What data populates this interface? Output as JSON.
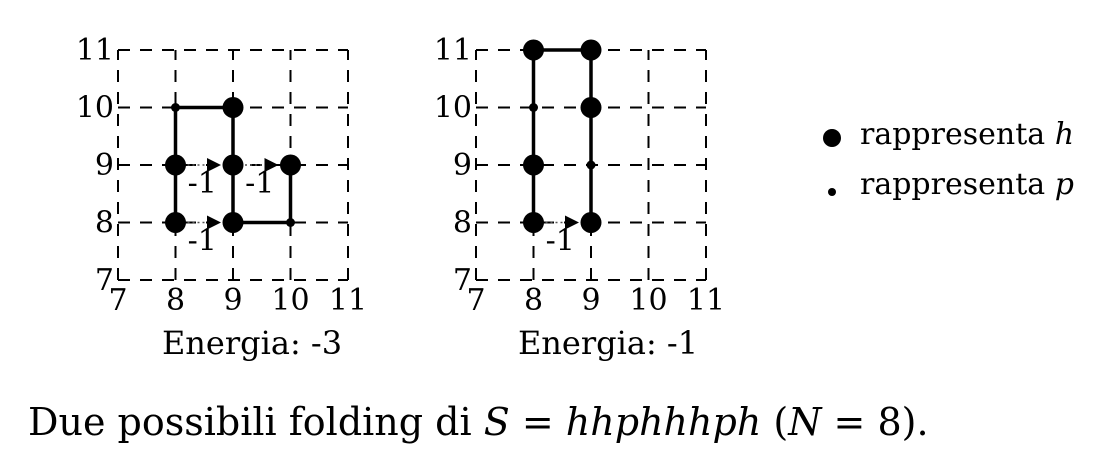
{
  "axis_ticks": {
    "x": [
      "7",
      "8",
      "9",
      "10",
      "11"
    ],
    "y": [
      "7",
      "8",
      "9",
      "10",
      "11"
    ]
  },
  "folding_1": {
    "energy_label": "Energia: -3",
    "path": [
      [
        8,
        8
      ],
      [
        8,
        9
      ],
      [
        8,
        10
      ],
      [
        9,
        10
      ],
      [
        9,
        9
      ],
      [
        9,
        8
      ],
      [
        10,
        8
      ],
      [
        10,
        9
      ]
    ],
    "types": [
      "h",
      "h",
      "p",
      "h",
      "h",
      "h",
      "p",
      "h"
    ],
    "contacts": [
      {
        "from": [
          8,
          9
        ],
        "to": [
          9,
          9
        ],
        "label": "-1"
      },
      {
        "from": [
          9,
          9
        ],
        "to": [
          10,
          9
        ],
        "label": "-1"
      },
      {
        "from": [
          8,
          8
        ],
        "to": [
          9,
          8
        ],
        "label": "-1"
      }
    ]
  },
  "folding_2": {
    "energy_label": "Energia: -1",
    "path": [
      [
        8,
        8
      ],
      [
        8,
        9
      ],
      [
        8,
        10
      ],
      [
        8,
        11
      ],
      [
        9,
        11
      ],
      [
        9,
        10
      ],
      [
        9,
        9
      ],
      [
        9,
        8
      ]
    ],
    "types": [
      "h",
      "h",
      "p",
      "h",
      "h",
      "h",
      "p",
      "h"
    ],
    "contacts": [
      {
        "from": [
          8,
          8
        ],
        "to": [
          9,
          8
        ],
        "label": "-1"
      }
    ]
  },
  "legend": {
    "h_text": "rappresenta",
    "h_symbol": "h",
    "p_text": "rappresenta",
    "p_symbol": "p"
  },
  "caption": {
    "prefix": "Due possibili folding di ",
    "sequence_var": "S",
    "equals": " = ",
    "sequence": "hhphhhph",
    "open_paren": " (",
    "n_var": "N",
    "n_equals": " = 8)."
  }
}
